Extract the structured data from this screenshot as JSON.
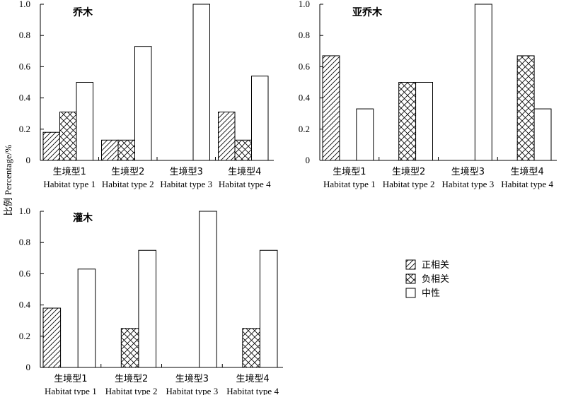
{
  "ylabel": "比例 Percentage/%",
  "legend": [
    {
      "label": "正相关",
      "pattern": "diagonal-hatch"
    },
    {
      "label": "负相关",
      "pattern": "cross-hatch"
    },
    {
      "label": "中性",
      "pattern": "none"
    }
  ],
  "colors": {
    "axis": "#000000",
    "bar_fill": "#ffffff",
    "hatch": "#000000"
  },
  "chart_data": [
    {
      "type": "bar",
      "title": "乔木",
      "categories": [
        {
          "zh": "生境型1",
          "en": "Habitat type 1"
        },
        {
          "zh": "生境型2",
          "en": "Habitat type 2"
        },
        {
          "zh": "生境型3",
          "en": "Habitat type 3"
        },
        {
          "zh": "生境型4",
          "en": "Habitat type 4"
        }
      ],
      "yticks": [
        "0",
        "0.2",
        "0.4",
        "0.6",
        "0.8",
        "1.0"
      ],
      "ylim": [
        0,
        1
      ],
      "series": [
        {
          "name": "正相关",
          "values": [
            0.18,
            0.13,
            0,
            0.31
          ]
        },
        {
          "name": "负相关",
          "values": [
            0.31,
            0.13,
            0,
            0.13
          ]
        },
        {
          "name": "中性",
          "values": [
            0.5,
            0.73,
            1.0,
            0.54
          ]
        }
      ]
    },
    {
      "type": "bar",
      "title": "亚乔木",
      "categories": [
        {
          "zh": "生境型1",
          "en": "Habitat type 1"
        },
        {
          "zh": "生境型2",
          "en": "Habitat type 2"
        },
        {
          "zh": "生境型3",
          "en": "Habitat type 3"
        },
        {
          "zh": "生境型4",
          "en": "Habitat type 4"
        }
      ],
      "yticks": [
        "0",
        "0.2",
        "0.4",
        "0.6",
        "0.8",
        "1.0"
      ],
      "ylim": [
        0,
        1
      ],
      "series": [
        {
          "name": "正相关",
          "values": [
            0.67,
            0,
            0,
            0
          ]
        },
        {
          "name": "负相关",
          "values": [
            0,
            0.5,
            0,
            0.67
          ]
        },
        {
          "name": "中性",
          "values": [
            0.33,
            0.5,
            1.0,
            0.33
          ]
        }
      ]
    },
    {
      "type": "bar",
      "title": "灌木",
      "categories": [
        {
          "zh": "生境型1",
          "en": "Habitat type 1"
        },
        {
          "zh": "生境型2",
          "en": "Habitat type 2"
        },
        {
          "zh": "生境型3",
          "en": "Habitat type 3"
        },
        {
          "zh": "生境型4",
          "en": "Habitat type 4"
        }
      ],
      "yticks": [
        "0",
        "0.2",
        "0.4",
        "0.6",
        "0.8",
        "1.0"
      ],
      "ylim": [
        0,
        1
      ],
      "series": [
        {
          "name": "正相关",
          "values": [
            0.38,
            0,
            0,
            0
          ]
        },
        {
          "name": "负相关",
          "values": [
            0,
            0.25,
            0,
            0.25
          ]
        },
        {
          "name": "中性",
          "values": [
            0.63,
            0.75,
            1.0,
            0.75
          ]
        }
      ]
    }
  ]
}
